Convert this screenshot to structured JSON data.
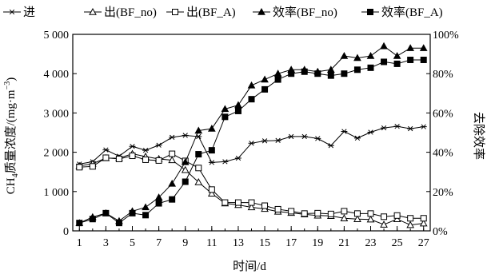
{
  "chart_data": {
    "type": "line",
    "xlabel": "时间/d",
    "ylabel_left_prefix": "CH",
    "ylabel_left_sub": "4",
    "ylabel_left_main": "质量浓度/(mg·m",
    "ylabel_left_sup": "−3",
    "ylabel_left_end": ")",
    "ylabel_right": "去除效率",
    "x": [
      1,
      2,
      3,
      4,
      5,
      6,
      7,
      8,
      9,
      10,
      11,
      12,
      13,
      14,
      15,
      16,
      17,
      18,
      19,
      20,
      21,
      22,
      23,
      24,
      25,
      26,
      27
    ],
    "x_ticks": [
      "1",
      "3",
      "5",
      "7",
      "9",
      "11",
      "13",
      "15",
      "17",
      "19",
      "21",
      "23",
      "25",
      "27"
    ],
    "xlim": [
      0.5,
      27.5
    ],
    "ylim_left": [
      0,
      5000
    ],
    "y_left_ticks": [
      "0",
      "1 000",
      "2 000",
      "3 000",
      "4 000",
      "5 000"
    ],
    "ylim_right": [
      0,
      100
    ],
    "y_right_ticks": [
      "0%",
      "20%",
      "40%",
      "60%",
      "80%",
      "100%"
    ],
    "grid": false,
    "legend_position": "top",
    "series": [
      {
        "name": "进",
        "axis": "left",
        "marker": "star",
        "values": [
          1700,
          1760,
          2060,
          1900,
          2150,
          2050,
          2180,
          2380,
          2430,
          2400,
          1740,
          1760,
          1850,
          2230,
          2290,
          2300,
          2400,
          2400,
          2350,
          2170,
          2530,
          2360,
          2510,
          2620,
          2660,
          2600,
          2650
        ]
      },
      {
        "name": "出(BF_no)",
        "axis": "left",
        "marker": "triangle-open",
        "values": [
          1650,
          1710,
          1850,
          1850,
          1960,
          1890,
          1830,
          1800,
          1550,
          1240,
          950,
          700,
          660,
          600,
          560,
          490,
          460,
          420,
          390,
          380,
          320,
          300,
          290,
          160,
          300,
          150,
          190
        ]
      },
      {
        "name": "出(BF_A)",
        "axis": "left",
        "marker": "square-open",
        "values": [
          1620,
          1640,
          1860,
          1830,
          1910,
          1810,
          1790,
          1960,
          1780,
          1600,
          1050,
          720,
          720,
          720,
          640,
          550,
          500,
          440,
          450,
          430,
          500,
          440,
          440,
          360,
          390,
          320,
          320
        ]
      },
      {
        "name": "效率(BF_no)",
        "axis": "right",
        "marker": "triangle-filled",
        "values": [
          4,
          7,
          9,
          5,
          10,
          12,
          17,
          24,
          35,
          51,
          52,
          62,
          64,
          74,
          77,
          80,
          82,
          82,
          81,
          82,
          89,
          88,
          89,
          94,
          89,
          93,
          93
        ]
      },
      {
        "name": "效率(BF_A)",
        "axis": "right",
        "marker": "square-filled",
        "values": [
          4,
          6,
          9,
          4,
          9,
          8,
          14,
          16,
          25,
          39,
          41,
          58,
          61,
          67,
          72,
          77,
          80,
          81,
          80,
          79,
          80,
          82,
          83,
          86,
          85,
          87,
          87
        ]
      }
    ]
  }
}
